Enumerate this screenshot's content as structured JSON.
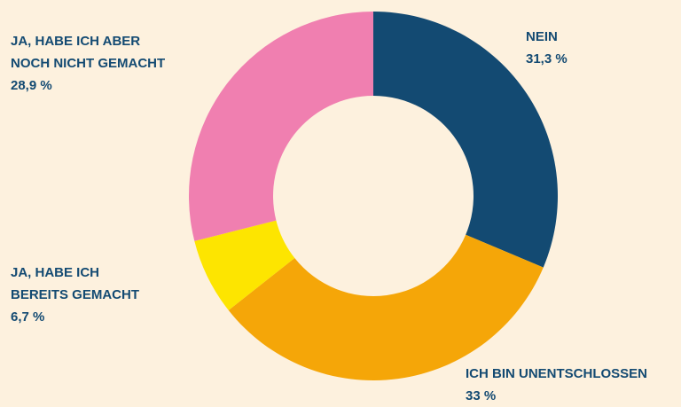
{
  "chart_data": {
    "type": "donut",
    "categories": [
      "NEIN",
      "ICH BIN UNENTSCHLOSSEN",
      "JA, HABE ICH\nBEREITS GEMACHT",
      "JA, HABE ICH ABER\nNOCH NICHT GEMACHT"
    ],
    "values": [
      31.3,
      33,
      6.7,
      28.9
    ],
    "value_labels": [
      "31,3 %",
      "33 %",
      "6,7 %",
      "28,9 %"
    ],
    "colors": [
      "#134a72",
      "#f5a608",
      "#fde500",
      "#f07fb0"
    ]
  }
}
